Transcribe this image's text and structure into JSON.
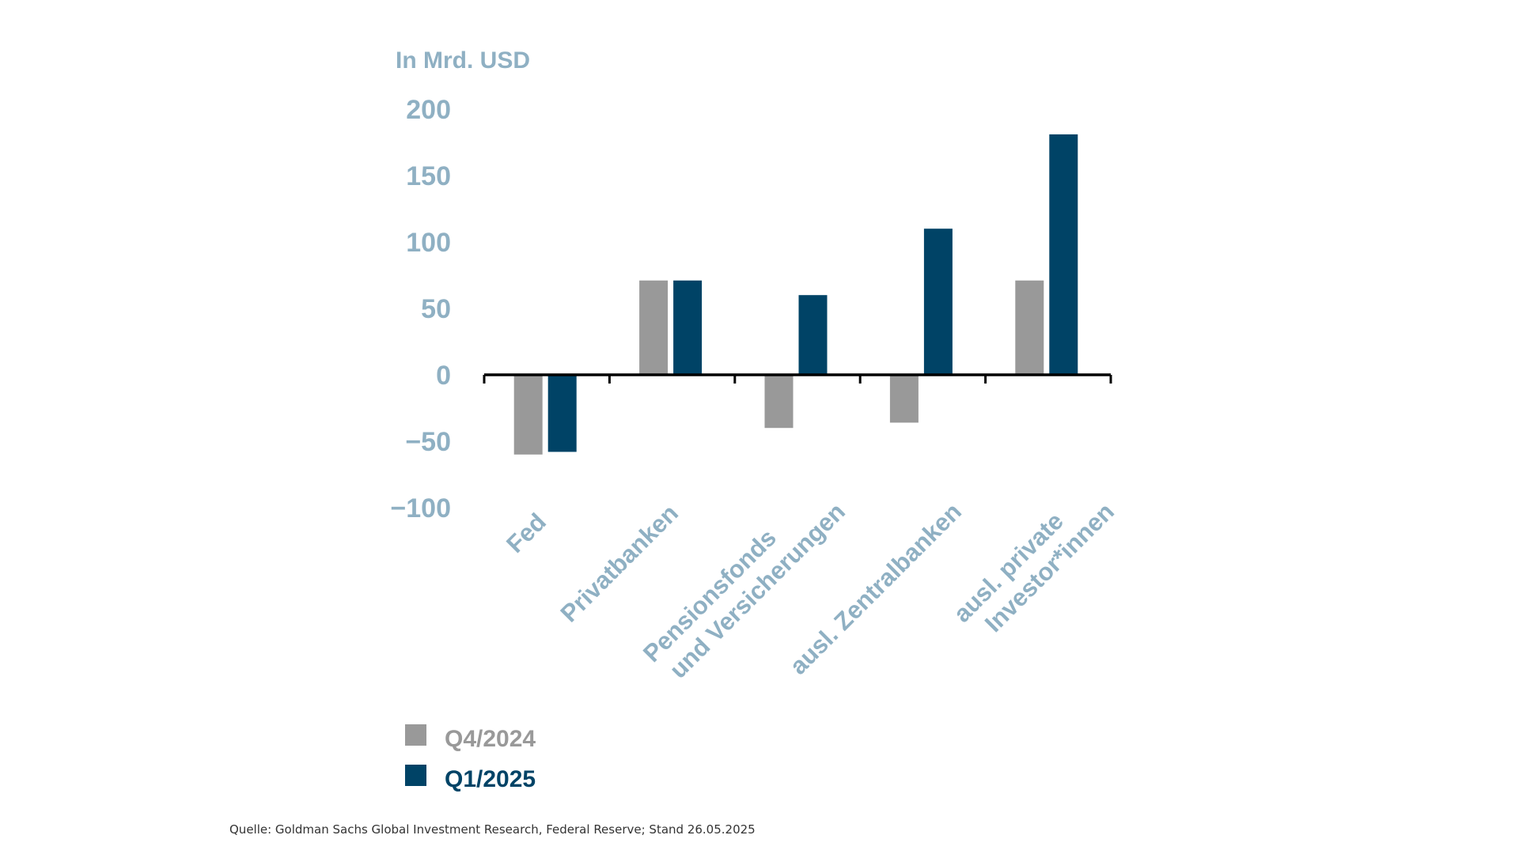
{
  "chart_data": {
    "type": "bar",
    "title": "In Mrd. USD",
    "categories": [
      [
        "Fed"
      ],
      [
        "Privatbanken"
      ],
      [
        "Pensionsfonds",
        "und Versicherungen"
      ],
      [
        "ausl. Zentralbanken"
      ],
      [
        "ausl. private",
        "Investor*innen"
      ]
    ],
    "series": [
      {
        "name": "Q4/2024",
        "color": "#999999",
        "values": [
          -60,
          71,
          -40,
          -36,
          71
        ]
      },
      {
        "name": "Q1/2025",
        "color": "#004366",
        "values": [
          -58,
          71,
          60,
          110,
          181
        ]
      }
    ],
    "yticks": [
      "200",
      "150",
      "100",
      "50",
      "0",
      "−50",
      "−100"
    ],
    "ylim": [
      -100,
      200
    ],
    "grid": false,
    "legend_position": "bottom-left",
    "axis_label_color": "#8fb0c3"
  },
  "source": "Quelle: Goldman Sachs Global Investment Research, Federal Reserve; Stand 26.05.2025"
}
